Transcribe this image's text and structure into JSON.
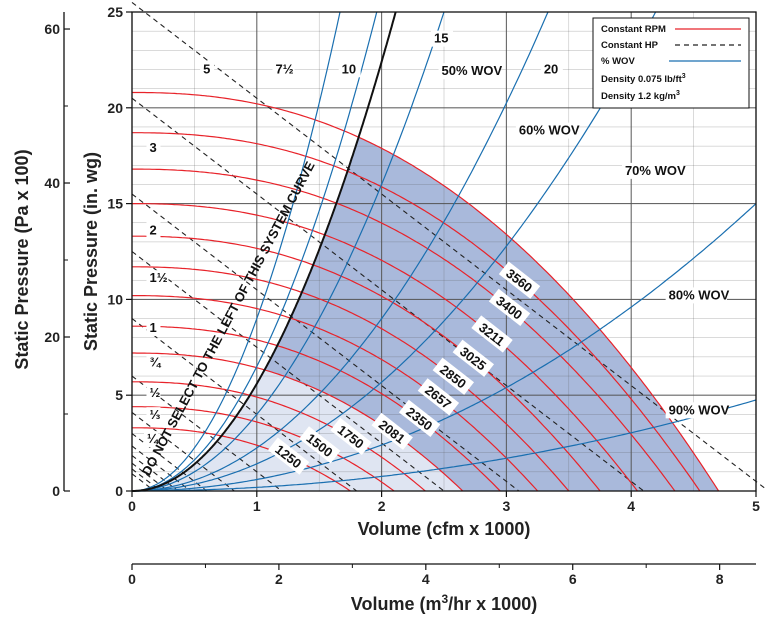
{
  "chart_data": {
    "type": "line",
    "title": "",
    "xlabel": "Volume (cfm x 1000)",
    "ylabel": "Static Pressure (in. wg)",
    "ylabel_secondary": "Static Pressure (Pa x 100)",
    "xlabel_secondary_main": "Volume (m",
    "xlabel_secondary_sup": "3",
    "xlabel_secondary_rest": "/hr x 1000)",
    "xlim": [
      0,
      5
    ],
    "ylim": [
      0,
      25
    ],
    "x_ticks": [
      "0",
      "1",
      "2",
      "3",
      "4",
      "5"
    ],
    "y_ticks": [
      "0",
      "5",
      "10",
      "15",
      "20",
      "25"
    ],
    "y2_ticks": [
      "0",
      "20",
      "40",
      "60"
    ],
    "x2_ticks": [
      "0",
      "2",
      "4",
      "6",
      "8"
    ],
    "grid": true,
    "legend": {
      "position": "top-right",
      "entries": [
        {
          "label": "Constant RPM",
          "style": "solid",
          "color": "#e8232a"
        },
        {
          "label": "Constant HP",
          "style": "dashed",
          "color": "#222222"
        },
        {
          "label": "% WOV",
          "style": "solid",
          "color": "#1a6fb0"
        }
      ],
      "density1": "Density  0.075 lb/ft",
      "density1_sup": "3",
      "density2": "Density  1.2 kg/m",
      "density2_sup": "3"
    },
    "system_curve_label": "DO NOT SELECT TO THE LEFT OF THIS SYSTEM CURVE",
    "rpm_series": [
      {
        "name": "1250",
        "shutoff_sp": 3.3,
        "free_cfm": 1.75
      },
      {
        "name": "1500",
        "shutoff_sp": 4.4,
        "free_cfm": 2.1
      },
      {
        "name": "1750",
        "shutoff_sp": 5.7,
        "free_cfm": 2.35
      },
      {
        "name": "2081",
        "shutoff_sp": 7.2,
        "free_cfm": 2.65
      },
      {
        "name": "2350",
        "shutoff_sp": 8.6,
        "free_cfm": 2.95
      },
      {
        "name": "2657",
        "shutoff_sp": 10.2,
        "free_cfm": 3.25
      },
      {
        "name": "2850",
        "shutoff_sp": 11.7,
        "free_cfm": 3.5
      },
      {
        "name": "3025",
        "shutoff_sp": 13.3,
        "free_cfm": 3.75
      },
      {
        "name": "3211",
        "shutoff_sp": 15.0,
        "free_cfm": 4.05
      },
      {
        "name": "3400",
        "shutoff_sp": 16.8,
        "free_cfm": 4.35
      },
      {
        "name": "3560",
        "shutoff_sp": 18.7,
        "free_cfm": 4.55
      },
      {
        "name": "",
        "shutoff_sp": 20.8,
        "free_cfm": 4.7
      }
    ],
    "hp_series": [
      {
        "name": "¼",
        "k": 0.9
      },
      {
        "name": "⅓",
        "k": 1.15
      },
      {
        "name": "½",
        "k": 1.45
      },
      {
        "name": "¾",
        "k": 1.85
      },
      {
        "name": "1",
        "k": 2.35
      },
      {
        "name": "1½",
        "k": 3.0
      },
      {
        "name": "2",
        "k": 4.1
      },
      {
        "name": "3",
        "k": 6.0
      },
      {
        "name": "5",
        "k": 9.0
      },
      {
        "name": "7½",
        "k": 12.5
      },
      {
        "name": "10",
        "k": 15.5
      },
      {
        "name": "15",
        "k": 20.5
      },
      {
        "name": "20",
        "k": 25.5
      }
    ],
    "wov_series": [
      {
        "name": "50% WOV",
        "coef": 4.0
      },
      {
        "name": "60% WOV",
        "coef": 2.25
      },
      {
        "name": "70% WOV",
        "coef": 1.42
      },
      {
        "name": "80% WOV",
        "coef": 0.6
      },
      {
        "name": "90% WOV",
        "coef": 0.19
      },
      {
        "name": "",
        "coef": 9.0
      },
      {
        "name": "",
        "coef": 6.5
      }
    ],
    "colors": {
      "rpm": "#e8232a",
      "hp": "#222222",
      "wov": "#1a6fb0",
      "system": "#111111",
      "region_dark": "#a9b9db",
      "region_light": "#dfe5f2",
      "grid": "#555555"
    }
  }
}
